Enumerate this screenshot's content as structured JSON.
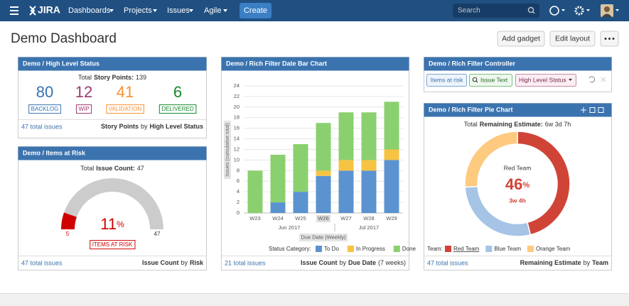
{
  "nav": {
    "logo": "JIRA",
    "menus": [
      "Dashboards",
      "Projects",
      "Issues",
      "Agile"
    ],
    "create": "Create",
    "search": "Search"
  },
  "header": {
    "title": "Demo Dashboard",
    "buttons": [
      "Add gadget",
      "Edit layout"
    ]
  },
  "status_gadget": {
    "title": "Demo / High Level Status",
    "total_label": "Total",
    "total_field": "Story Points:",
    "total_value": 139,
    "counts": [
      {
        "value": 80,
        "label": "BACKLOG",
        "color": "#3572b0"
      },
      {
        "value": 12,
        "label": "WIP",
        "color": "#9c3a6f"
      },
      {
        "value": 41,
        "label": "VALIDATION",
        "color": "#f79232"
      },
      {
        "value": 6,
        "label": "DELIVERED",
        "color": "#14892c"
      }
    ],
    "footer": {
      "link": "47 total issues",
      "field": "Story Points",
      "by": "by",
      "group": "High Level Status"
    }
  },
  "risk_gadget": {
    "title": "Demo / Items at Risk",
    "total_label": "Total",
    "total_field": "Issue Count:",
    "total_value": 47,
    "gauge": {
      "value": 5,
      "max": 47,
      "percent": 11,
      "unit": "%",
      "label": "ITEMS AT RISK",
      "color": "#d00000",
      "track_color": "#cccccc"
    },
    "footer": {
      "link": "47 total issues",
      "field": "Issue Count",
      "by": "by",
      "group": "Risk"
    }
  },
  "controller": {
    "title": "Demo / Rich Filter Controller",
    "buttons": [
      "Items at risk",
      "Issue Text",
      "High Level Status"
    ]
  },
  "chart_data": [
    {
      "type": "bar",
      "stacked": true,
      "title": "Demo / Rich Filter Date Bar Chart",
      "categories": [
        "W23",
        "W24",
        "W25",
        "W26",
        "W27",
        "W28",
        "W29"
      ],
      "highlight_index": 3,
      "month_labels": [
        "Jun 2017",
        "Jul 2017"
      ],
      "x_label": "Due Date (Weekly)",
      "y_label": "Issues (cumulative total)",
      "ylim": [
        0,
        25
      ],
      "yticks": [
        0,
        2,
        4,
        6,
        8,
        10,
        12,
        14,
        16,
        18,
        20,
        22,
        24
      ],
      "grid": true,
      "legend_title": "Status Category:",
      "series": [
        {
          "name": "To Do",
          "color": "#5b93d0",
          "values": [
            0,
            2,
            4,
            7,
            8,
            8,
            10
          ]
        },
        {
          "name": "In Progress",
          "color": "#f6c342",
          "values": [
            0,
            0,
            0,
            1,
            2,
            2,
            2
          ]
        },
        {
          "name": "Done",
          "color": "#8bd06f",
          "values": [
            8,
            9,
            9,
            9,
            9,
            9,
            9
          ]
        }
      ],
      "footer": {
        "link": "21 total issues",
        "field": "Issue Count",
        "by": "by",
        "group": "Due Date",
        "note": "(7 weeks)"
      }
    },
    {
      "type": "pie",
      "donut": true,
      "title": "Demo / Rich Filter Pie Chart",
      "total_label": "Total",
      "total_field": "Remaining Estimate:",
      "total_value": "6w 3d 7h",
      "categories": [
        "Red Team",
        "Blue Team",
        "Orange Team"
      ],
      "values": [
        46,
        28,
        26
      ],
      "unit": "%",
      "colors": [
        "#d04437",
        "#a5c4e6",
        "#fdca80"
      ],
      "center_detail": "3w 4h",
      "legend_title": "Team:",
      "footer": {
        "link": "47 total issues",
        "field": "Remaining Estimate",
        "by": "by",
        "group": "Team"
      }
    }
  ]
}
